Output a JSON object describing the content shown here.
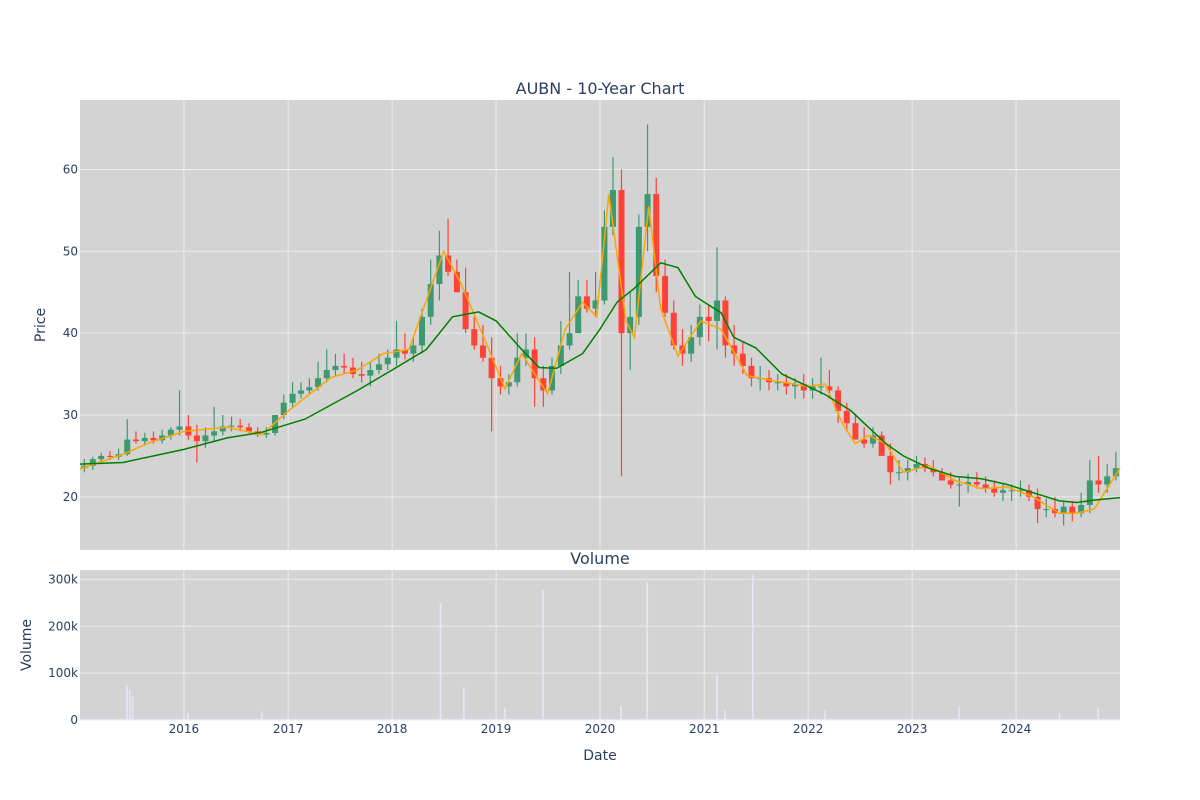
{
  "chart_data": [
    {
      "type": "candlestick",
      "title": "AUBN - 10-Year Chart",
      "ylabel": "Price",
      "ylim": [
        13.5,
        68.5
      ],
      "yticks": [
        20,
        30,
        40,
        50,
        60
      ],
      "xlim": [
        "2015-01-01",
        "2024-12-31"
      ],
      "grid": true,
      "up_color": "#3d9970",
      "down_color": "#ff4136",
      "background": "#d3d3d3",
      "series": [
        {
          "name": "",
          "type": "candlestick",
          "color": "#3d9970",
          "x": [
            "2015-01",
            "2015-02",
            "2015-03",
            "2015-04",
            "2015-05",
            "2015-06",
            "2015-07",
            "2015-08",
            "2015-09",
            "2015-10",
            "2015-11",
            "2015-12",
            "2016-01",
            "2016-02",
            "2016-03",
            "2016-04",
            "2016-05",
            "2016-06",
            "2016-07",
            "2016-08",
            "2016-09",
            "2016-10",
            "2016-11",
            "2016-12",
            "2017-01",
            "2017-02",
            "2017-03",
            "2017-04",
            "2017-05",
            "2017-06",
            "2017-07",
            "2017-08",
            "2017-09",
            "2017-10",
            "2017-11",
            "2017-12",
            "2018-01",
            "2018-02",
            "2018-03",
            "2018-04",
            "2018-05",
            "2018-06",
            "2018-07",
            "2018-08",
            "2018-09",
            "2018-10",
            "2018-11",
            "2018-12",
            "2019-01",
            "2019-02",
            "2019-03",
            "2019-04",
            "2019-05",
            "2019-06",
            "2019-07",
            "2019-08",
            "2019-09",
            "2019-10",
            "2019-11",
            "2019-12",
            "2020-01",
            "2020-02",
            "2020-03",
            "2020-04",
            "2020-05",
            "2020-06",
            "2020-07",
            "2020-08",
            "2020-09",
            "2020-10",
            "2020-11",
            "2020-12",
            "2021-01",
            "2021-02",
            "2021-03",
            "2021-04",
            "2021-05",
            "2021-06",
            "2021-07",
            "2021-08",
            "2021-09",
            "2021-10",
            "2021-11",
            "2021-12",
            "2022-01",
            "2022-02",
            "2022-03",
            "2022-04",
            "2022-05",
            "2022-06",
            "2022-07",
            "2022-08",
            "2022-09",
            "2022-10",
            "2022-11",
            "2022-12",
            "2023-01",
            "2023-02",
            "2023-03",
            "2023-04",
            "2023-05",
            "2023-06",
            "2023-07",
            "2023-08",
            "2023-09",
            "2023-10",
            "2023-11",
            "2023-12",
            "2024-01",
            "2024-02",
            "2024-03",
            "2024-04",
            "2024-05",
            "2024-06",
            "2024-07",
            "2024-08",
            "2024-09",
            "2024-10",
            "2024-11",
            "2024-12"
          ],
          "open": [
            23.5,
            23.8,
            24.6,
            25.0,
            24.9,
            25.2,
            27.0,
            26.8,
            27.2,
            26.9,
            27.5,
            28.2,
            28.6,
            27.5,
            26.8,
            27.5,
            28.0,
            28.6,
            28.7,
            28.5,
            28.0,
            27.6,
            27.8,
            30.0,
            31.5,
            32.6,
            33.0,
            33.4,
            34.5,
            35.5,
            36.0,
            35.8,
            35.0,
            34.8,
            35.5,
            36.2,
            37.0,
            38.0,
            37.5,
            38.5,
            42.0,
            46.0,
            49.5,
            47.5,
            45.0,
            40.5,
            38.5,
            37.0,
            34.5,
            33.5,
            34.0,
            37.0,
            38.0,
            34.5,
            33.0,
            36.0,
            38.5,
            40.0,
            44.5,
            43.0,
            44.0,
            53.0,
            57.5,
            40.0,
            42.0,
            53.0,
            57.0,
            47.0,
            42.5,
            38.5,
            37.5,
            39.5,
            42.0,
            41.5,
            44.0,
            38.5,
            37.5,
            36.0,
            34.5,
            34.5,
            34.0,
            34.0,
            33.5,
            33.8,
            33.0,
            33.5,
            33.5,
            33.0,
            30.5,
            29.0,
            27.0,
            26.5,
            27.5,
            25.0,
            23.0,
            23.0,
            23.5,
            24.0,
            23.5,
            23.0,
            22.0,
            21.5,
            21.5,
            21.8,
            21.5,
            21.0,
            20.5,
            20.8,
            20.8,
            20.8,
            20.0,
            18.5,
            18.5,
            18.0,
            18.8,
            18.0,
            19.0,
            22.0,
            21.5,
            22.5
          ],
          "high": [
            24.6,
            24.9,
            25.4,
            25.6,
            25.9,
            29.5,
            28.0,
            27.8,
            28.0,
            28.2,
            28.5,
            33.0,
            30.0,
            28.8,
            28.5,
            31.0,
            30.0,
            29.8,
            29.5,
            29.0,
            28.5,
            28.5,
            29.5,
            32.5,
            34.0,
            34.0,
            34.5,
            36.5,
            38.0,
            37.5,
            37.5,
            37.0,
            36.5,
            36.5,
            37.5,
            38.0,
            41.5,
            40.0,
            39.5,
            43.0,
            49.0,
            52.5,
            54.0,
            49.0,
            48.0,
            42.0,
            41.0,
            39.5,
            36.0,
            35.0,
            40.0,
            40.0,
            39.5,
            36.0,
            37.0,
            41.5,
            47.5,
            46.5,
            46.5,
            47.5,
            55.0,
            61.5,
            60.0,
            45.0,
            54.5,
            65.5,
            59.0,
            49.0,
            44.0,
            40.5,
            41.0,
            43.5,
            43.5,
            50.5,
            44.5,
            41.0,
            39.0,
            37.0,
            36.0,
            35.5,
            35.0,
            35.0,
            34.5,
            35.0,
            34.5,
            37.0,
            35.5,
            33.5,
            31.5,
            30.0,
            28.5,
            28.5,
            28.0,
            26.5,
            24.5,
            24.5,
            25.0,
            24.8,
            24.5,
            23.5,
            23.0,
            22.5,
            22.8,
            23.0,
            22.5,
            22.0,
            21.5,
            21.5,
            22.0,
            21.5,
            21.0,
            19.8,
            20.0,
            19.5,
            19.5,
            20.5,
            24.5,
            25.0,
            24.0,
            25.5
          ],
          "low": [
            23.0,
            23.3,
            24.0,
            24.5,
            24.5,
            25.0,
            26.5,
            26.3,
            26.5,
            26.5,
            27.0,
            27.5,
            27.0,
            24.2,
            26.0,
            26.8,
            27.5,
            28.0,
            28.0,
            27.8,
            27.3,
            27.2,
            27.5,
            29.5,
            31.0,
            32.0,
            32.5,
            33.0,
            34.0,
            34.8,
            35.0,
            34.5,
            34.0,
            33.5,
            35.0,
            35.5,
            36.0,
            36.8,
            36.5,
            37.5,
            41.0,
            44.0,
            47.0,
            45.5,
            40.0,
            38.0,
            36.5,
            28.0,
            32.5,
            32.5,
            33.5,
            36.0,
            31.0,
            31.0,
            32.5,
            35.0,
            38.0,
            40.0,
            42.5,
            42.0,
            43.5,
            52.0,
            22.5,
            35.5,
            41.0,
            50.0,
            45.0,
            42.0,
            38.0,
            36.0,
            36.5,
            38.5,
            39.0,
            38.0,
            37.0,
            36.0,
            35.0,
            33.5,
            33.0,
            33.0,
            33.0,
            32.5,
            32.0,
            32.0,
            32.0,
            32.5,
            32.0,
            29.0,
            28.0,
            27.0,
            26.0,
            26.0,
            25.5,
            21.5,
            22.0,
            22.0,
            23.0,
            23.0,
            22.5,
            22.0,
            21.0,
            18.8,
            20.5,
            21.0,
            20.5,
            20.0,
            19.5,
            19.5,
            20.0,
            19.5,
            16.8,
            17.5,
            17.5,
            16.5,
            17.0,
            17.5,
            18.0,
            20.5,
            20.5,
            22.0
          ],
          "close": [
            23.8,
            24.6,
            25.0,
            24.9,
            25.2,
            27.0,
            26.8,
            27.2,
            26.9,
            27.5,
            28.2,
            28.6,
            27.5,
            26.8,
            27.5,
            28.0,
            28.6,
            28.7,
            28.5,
            28.0,
            27.6,
            27.8,
            30.0,
            31.5,
            32.6,
            33.0,
            33.4,
            34.5,
            35.5,
            36.0,
            35.8,
            35.0,
            34.8,
            35.5,
            36.2,
            37.0,
            38.0,
            37.5,
            38.5,
            42.0,
            46.0,
            49.5,
            47.5,
            45.0,
            40.5,
            38.5,
            37.0,
            34.5,
            33.5,
            34.0,
            37.0,
            38.0,
            34.5,
            33.0,
            36.0,
            38.5,
            40.0,
            44.5,
            43.0,
            44.0,
            53.0,
            57.5,
            40.0,
            42.0,
            53.0,
            57.0,
            47.0,
            42.5,
            38.5,
            37.5,
            39.5,
            42.0,
            41.5,
            44.0,
            38.5,
            37.5,
            36.0,
            34.5,
            34.5,
            34.0,
            34.0,
            33.5,
            33.8,
            33.0,
            33.5,
            33.5,
            33.0,
            30.5,
            29.0,
            27.0,
            26.5,
            27.5,
            25.0,
            23.0,
            23.0,
            23.5,
            24.0,
            23.5,
            23.0,
            22.0,
            21.5,
            21.5,
            21.8,
            21.5,
            21.0,
            20.5,
            20.8,
            20.8,
            20.8,
            20.0,
            18.5,
            18.5,
            18.0,
            18.8,
            18.0,
            19.0,
            22.0,
            21.5,
            22.5,
            23.5
          ]
        },
        {
          "name": "",
          "type": "line",
          "color": "#ffa500",
          "x": [
            "2015-01-01",
            "2015-06-01",
            "2015-09-01",
            "2016-01-01",
            "2016-06-01",
            "2016-10-01",
            "2017-01-01",
            "2017-06-01",
            "2017-09-01",
            "2017-12-01",
            "2018-03-01",
            "2018-07-01",
            "2018-09-01",
            "2018-12-01",
            "2019-02-01",
            "2019-04-01",
            "2019-07-01",
            "2019-09-01",
            "2019-11-01",
            "2019-12-20",
            "2020-02-01",
            "2020-04-01",
            "2020-05-01",
            "2020-06-20",
            "2020-08-01",
            "2020-10-01",
            "2020-12-20",
            "2021-03-01",
            "2021-06-01",
            "2021-09-01",
            "2022-01-01",
            "2022-03-01",
            "2022-05-01",
            "2022-06-15",
            "2022-08-01",
            "2022-10-01",
            "2022-12-01",
            "2023-03-01",
            "2023-06-01",
            "2023-09-01",
            "2023-12-01",
            "2024-03-01",
            "2024-06-01",
            "2024-08-01",
            "2024-10-01",
            "2024-12-31"
          ],
          "y": [
            23.4,
            25.2,
            26.6,
            28.0,
            28.5,
            27.6,
            30.5,
            34.6,
            35.5,
            37.5,
            38.0,
            50.0,
            46.0,
            38.5,
            33.2,
            37.5,
            32.6,
            40.5,
            43.8,
            42.0,
            57.0,
            41.5,
            39.5,
            55.5,
            43.0,
            37.2,
            41.5,
            40.5,
            34.8,
            34.2,
            33.5,
            33.8,
            29.0,
            26.5,
            27.5,
            26.5,
            23.0,
            23.8,
            22.0,
            21.0,
            21.2,
            20.0,
            18.0,
            18.0,
            18.5,
            23.5
          ]
        },
        {
          "name": "",
          "type": "line",
          "color": "#008000",
          "x": [
            "2015-01-01",
            "2015-06-01",
            "2016-01-01",
            "2016-06-01",
            "2016-10-01",
            "2017-03-01",
            "2017-09-01",
            "2018-01-01",
            "2018-05-01",
            "2018-08-01",
            "2018-11-01",
            "2019-01-01",
            "2019-04-01",
            "2019-06-01",
            "2019-08-01",
            "2019-11-01",
            "2020-01-01",
            "2020-03-01",
            "2020-05-01",
            "2020-08-01",
            "2020-10-01",
            "2020-12-01",
            "2021-01-01",
            "2021-03-01",
            "2021-04-15",
            "2021-07-01",
            "2021-10-01",
            "2021-12-01",
            "2022-03-01",
            "2022-06-01",
            "2022-08-01",
            "2022-10-01",
            "2022-12-01",
            "2023-03-01",
            "2023-06-01",
            "2023-09-01",
            "2023-12-01",
            "2024-03-01",
            "2024-06-01",
            "2024-08-01",
            "2024-10-01",
            "2024-12-31"
          ],
          "y": [
            24.0,
            24.2,
            25.8,
            27.2,
            27.9,
            29.5,
            33.0,
            35.5,
            38.0,
            42.0,
            42.6,
            41.5,
            38.0,
            35.8,
            35.7,
            37.5,
            40.5,
            43.8,
            45.5,
            48.6,
            48.0,
            44.5,
            43.8,
            42.5,
            39.5,
            38.2,
            35.0,
            34.0,
            32.5,
            30.5,
            28.5,
            26.5,
            25.0,
            23.5,
            22.5,
            22.2,
            21.5,
            20.5,
            19.5,
            19.3,
            19.6,
            19.9
          ]
        }
      ]
    },
    {
      "type": "bar",
      "title": "Volume",
      "ylabel": "Volume",
      "xlabel": "Date",
      "ylim": [
        0,
        320000
      ],
      "yticks": [
        0,
        100000,
        200000,
        300000
      ],
      "ytick_labels": [
        "0",
        "100k",
        "200k",
        "300k"
      ],
      "xtick_labels": [
        "2016",
        "2017",
        "2018",
        "2019",
        "2020",
        "2021",
        "2022",
        "2023",
        "2024"
      ],
      "xlim": [
        "2015-01-01",
        "2024-12-31"
      ],
      "grid": true,
      "bar_color": "#e6e6fa",
      "background": "#d3d3d3",
      "baseline": 2500,
      "x": [
        "2015-06-15",
        "2015-06-25",
        "2015-07-05",
        "2016-01-15",
        "2016-10-01",
        "2018-06-20",
        "2018-09-10",
        "2019-02-01",
        "2019-06-15",
        "2020-03-15",
        "2020-06-15",
        "2021-02-15",
        "2021-03-15",
        "2021-06-20",
        "2022-03-01",
        "2023-06-15",
        "2024-06-01",
        "2024-10-15"
      ],
      "values": [
        75000,
        65000,
        50000,
        15000,
        18000,
        250000,
        70000,
        25000,
        278000,
        30000,
        295000,
        95000,
        20000,
        310000,
        20000,
        28000,
        15000,
        25000
      ]
    }
  ]
}
